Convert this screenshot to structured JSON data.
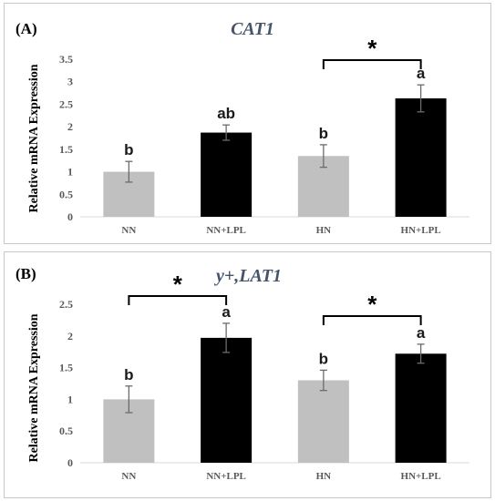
{
  "colors": {
    "nn_bar": "#c0c0c0",
    "lpl_bar": "#000000",
    "title": "#44546a",
    "axis_text": "#595959",
    "letters": "#1a1a1a"
  },
  "chart_data": [
    {
      "type": "bar",
      "panel_label": "(A)",
      "title": "CAT1",
      "ylabel": "Relative mRNA Expression",
      "xlabel": "",
      "categories": [
        "NN",
        "NN+LPL",
        "HN",
        "HN+LPL"
      ],
      "values": [
        1.0,
        1.87,
        1.35,
        2.63
      ],
      "errors": [
        0.23,
        0.17,
        0.25,
        0.3
      ],
      "letters": [
        "b",
        "ab",
        "b",
        "a"
      ],
      "bar_colors": [
        "#c0c0c0",
        "#000000",
        "#c0c0c0",
        "#000000"
      ],
      "ylim": [
        0,
        3.5
      ],
      "yticks": [
        "0",
        "0.5",
        "1",
        "1.5",
        "2",
        "2.5",
        "3",
        "3.5"
      ],
      "tick_values": [
        0,
        0.5,
        1,
        1.5,
        2,
        2.5,
        3,
        3.5
      ],
      "significance": [
        {
          "from": 2,
          "to": 3,
          "symbol": "*"
        }
      ],
      "grid": false
    },
    {
      "type": "bar",
      "panel_label": "(B)",
      "title": "y+,LAT1",
      "ylabel": "Relative mRNA Expression",
      "xlabel": "",
      "categories": [
        "NN",
        "NN+LPL",
        "HN",
        "HN+LPL"
      ],
      "values": [
        1.0,
        1.97,
        1.3,
        1.72
      ],
      "errors": [
        0.21,
        0.23,
        0.16,
        0.15
      ],
      "letters": [
        "b",
        "a",
        "b",
        "a"
      ],
      "bar_colors": [
        "#c0c0c0",
        "#000000",
        "#c0c0c0",
        "#000000"
      ],
      "ylim": [
        0,
        2.5
      ],
      "yticks": [
        "0",
        "0.5",
        "1",
        "1.5",
        "2",
        "2.5"
      ],
      "tick_values": [
        0,
        0.5,
        1,
        1.5,
        2,
        2.5
      ],
      "significance": [
        {
          "from": 0,
          "to": 1,
          "symbol": "*"
        },
        {
          "from": 2,
          "to": 3,
          "symbol": "*"
        }
      ],
      "grid": false
    }
  ]
}
